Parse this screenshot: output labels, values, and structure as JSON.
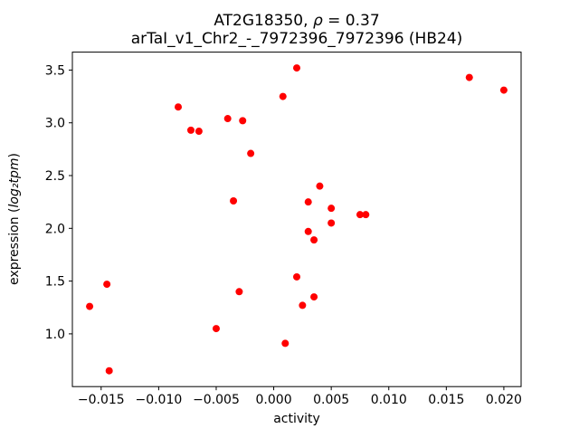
{
  "chart_data": {
    "type": "scatter",
    "title": "AT2G18350, ρ = 0.37",
    "title_prefix": "AT2G18350, ",
    "title_rho": "ρ",
    "title_suffix": " = 0.37",
    "subtitle": "arTaI_v1_Chr2_-_7972396_7972396 (HB24)",
    "xlabel": "activity",
    "ylabel": "expression (log₂tpm)",
    "ylabel_prefix": "expression (",
    "ylabel_math": "log₂tpm",
    "ylabel_suffix": ")",
    "xlim": [
      -0.0175,
      0.0215
    ],
    "ylim": [
      0.5,
      3.67
    ],
    "xticks": [
      -0.015,
      -0.01,
      -0.005,
      0,
      0.005,
      0.01,
      0.015,
      0.02
    ],
    "xtick_labels": [
      "−0.015",
      "−0.010",
      "−0.005",
      "0.000",
      "0.005",
      "0.010",
      "0.015",
      "0.020"
    ],
    "yticks": [
      1.0,
      1.5,
      2.0,
      2.5,
      3.0,
      3.5
    ],
    "ytick_labels": [
      "1.0",
      "1.5",
      "2.0",
      "2.5",
      "3.0",
      "3.5"
    ],
    "marker_color": "#ff0000",
    "marker_radius": 4,
    "legend": "none",
    "grid": false,
    "points": [
      [
        -0.016,
        1.26
      ],
      [
        -0.0145,
        1.47
      ],
      [
        -0.0143,
        0.65
      ],
      [
        -0.0083,
        3.15
      ],
      [
        -0.0072,
        2.93
      ],
      [
        -0.0065,
        2.92
      ],
      [
        -0.005,
        1.05
      ],
      [
        -0.004,
        3.04
      ],
      [
        -0.0035,
        2.26
      ],
      [
        -0.0027,
        3.02
      ],
      [
        -0.003,
        1.4
      ],
      [
        -0.002,
        2.71
      ],
      [
        0.0008,
        3.25
      ],
      [
        0.001,
        0.91
      ],
      [
        0.002,
        3.52
      ],
      [
        0.002,
        1.54
      ],
      [
        0.0025,
        1.27
      ],
      [
        0.003,
        2.25
      ],
      [
        0.003,
        1.97
      ],
      [
        0.0035,
        1.89
      ],
      [
        0.004,
        2.4
      ],
      [
        0.0035,
        1.35
      ],
      [
        0.005,
        2.19
      ],
      [
        0.005,
        2.05
      ],
      [
        0.0075,
        2.13
      ],
      [
        0.008,
        2.13
      ],
      [
        0.017,
        3.43
      ],
      [
        0.02,
        3.31
      ]
    ]
  }
}
